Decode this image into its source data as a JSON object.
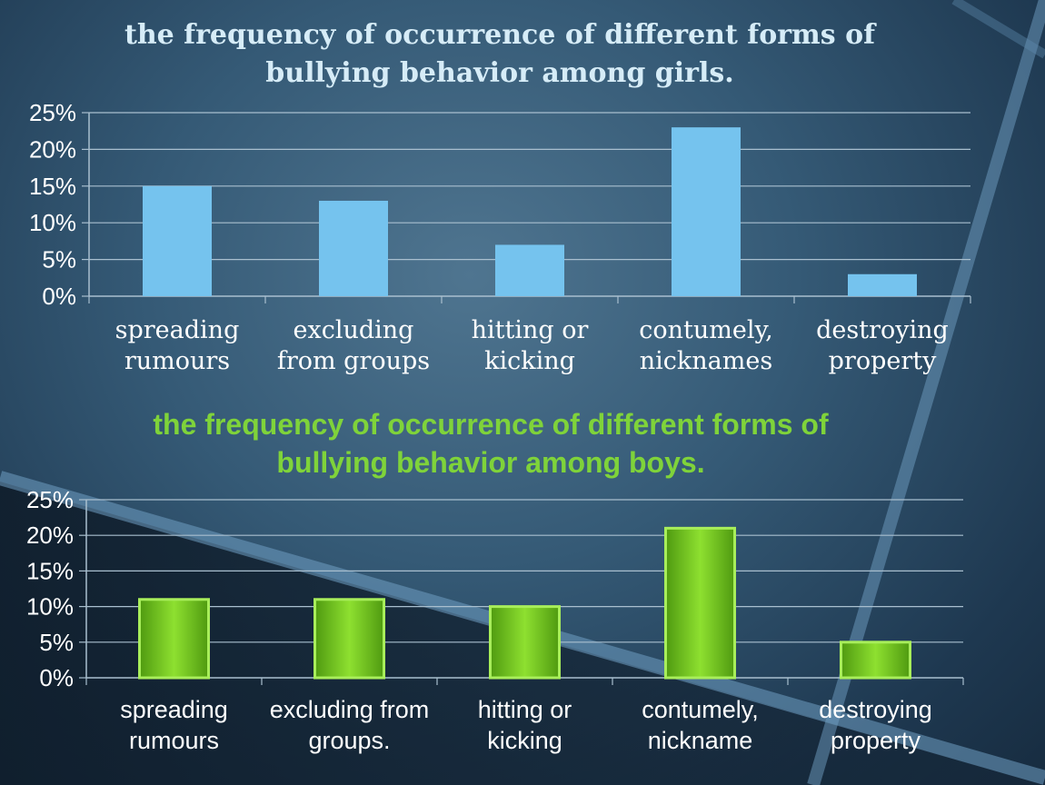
{
  "chart_data": [
    {
      "type": "bar",
      "title": "the frequency of occurrence of different forms of\nbullying behavior among girls.",
      "categories": [
        "spreading\nrumours",
        "excluding\nfrom groups",
        "hitting or\nkicking",
        "contumely,\nnicknames",
        "destroying\nproperty"
      ],
      "values": [
        15,
        13,
        7,
        23,
        3
      ],
      "yticks": [
        "0%",
        "5%",
        "10%",
        "15%",
        "20%",
        "25%"
      ],
      "ylim": [
        0,
        25
      ],
      "grid": true,
      "legend": "none",
      "bar_color": "#75c3ee",
      "title_color": "#d6ecf7"
    },
    {
      "type": "bar",
      "title": "the frequency of occurrence of different forms of\nbullying behavior among boys.",
      "categories": [
        "spreading\nrumours",
        "excluding from\ngroups.",
        "hitting or\nkicking",
        "contumely,\nnickname",
        "destroying\nproperty"
      ],
      "values": [
        11,
        11,
        10,
        21,
        5
      ],
      "yticks": [
        "0%",
        "5%",
        "10%",
        "15%",
        "20%",
        "25%"
      ],
      "ylim": [
        0,
        25
      ],
      "grid": true,
      "legend": "none",
      "bar_color": "#6dc21c",
      "title_color": "#7fd33a"
    }
  ]
}
